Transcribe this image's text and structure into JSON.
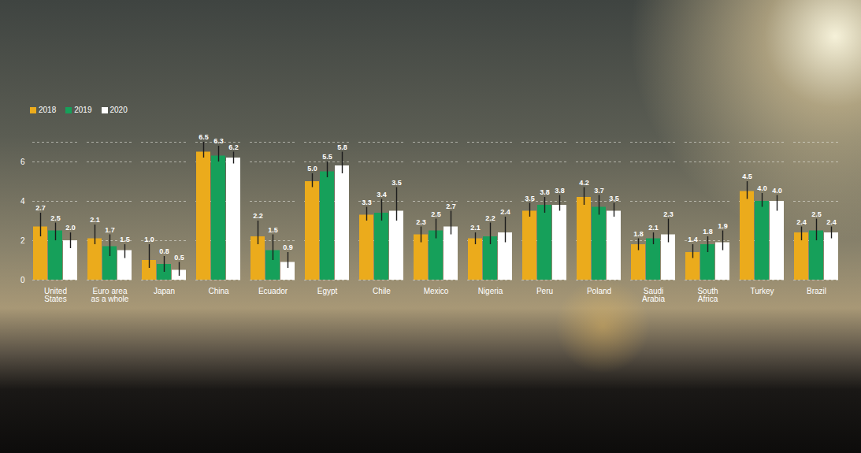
{
  "chart_data": {
    "type": "bar",
    "categories": [
      "United States",
      "Euro area as a whole",
      "Japan",
      "China",
      "Ecuador",
      "Egypt",
      "Chile",
      "Mexico",
      "Nigeria",
      "Peru",
      "Poland",
      "Saudi Arabia",
      "South Africa",
      "Turkey",
      "Brazil"
    ],
    "series": [
      {
        "name": "2018",
        "color": "#ebab1c",
        "values": [
          2.7,
          2.1,
          1.0,
          6.5,
          2.2,
          5.0,
          3.3,
          2.3,
          2.1,
          3.5,
          4.2,
          1.8,
          1.4,
          4.5,
          2.4
        ],
        "value_labels": [
          "2.7",
          "2.1",
          "1.0",
          "6.5",
          "2.2",
          "5.0",
          "3.3",
          "2.3",
          "2.1",
          "3.5",
          "4.2",
          "1.8",
          "1.4",
          "4.5",
          "2.4"
        ],
        "error_low": [
          2.2,
          1.8,
          0.6,
          6.2,
          1.8,
          4.7,
          3.0,
          1.9,
          1.8,
          3.2,
          3.8,
          1.5,
          1.1,
          4.1,
          2.0
        ],
        "error_high": [
          3.4,
          2.8,
          1.8,
          7.0,
          3.0,
          5.4,
          3.7,
          2.7,
          2.4,
          3.9,
          4.7,
          2.1,
          1.8,
          5.0,
          2.7
        ]
      },
      {
        "name": "2019",
        "color": "#16a05a",
        "values": [
          2.5,
          1.7,
          0.8,
          6.3,
          1.5,
          5.5,
          3.4,
          2.5,
          2.2,
          3.8,
          3.7,
          2.1,
          1.8,
          4.0,
          2.5
        ],
        "value_labels": [
          "2.5",
          "1.7",
          "0.8",
          "6.3",
          "1.5",
          "5.5",
          "3.4",
          "2.5",
          "2.2",
          "3.8",
          "3.7",
          "2.1",
          "1.8",
          "4.0",
          "2.5"
        ],
        "error_low": [
          2.0,
          1.2,
          0.4,
          6.0,
          1.0,
          5.2,
          3.0,
          2.1,
          1.8,
          3.4,
          3.3,
          1.8,
          1.4,
          3.7,
          2.0
        ],
        "error_high": [
          2.9,
          2.3,
          1.2,
          6.8,
          2.3,
          6.0,
          4.1,
          3.1,
          2.9,
          4.2,
          4.3,
          2.4,
          2.2,
          4.4,
          3.1
        ]
      },
      {
        "name": "2020",
        "color": "#ffffff",
        "values": [
          2.0,
          1.5,
          0.5,
          6.2,
          0.9,
          5.8,
          3.5,
          2.7,
          2.4,
          3.8,
          3.5,
          2.3,
          1.9,
          4.0,
          2.4
        ],
        "value_labels": [
          "2.0",
          "1.5",
          "0.5",
          "6.2",
          "0.9",
          "5.8",
          "3.5",
          "2.7",
          "2.4",
          "3.8",
          "3.5",
          "2.3",
          "1.9",
          "4.0",
          "2.4"
        ],
        "error_low": [
          1.6,
          1.1,
          0.2,
          5.9,
          0.6,
          5.4,
          3.0,
          2.3,
          1.9,
          3.5,
          3.2,
          1.9,
          1.5,
          3.5,
          2.1
        ],
        "error_high": [
          2.4,
          1.8,
          0.9,
          6.5,
          1.4,
          6.5,
          4.7,
          3.5,
          3.2,
          4.3,
          3.9,
          3.1,
          2.5,
          4.3,
          2.7
        ]
      }
    ],
    "ylim": [
      0,
      7
    ],
    "yticks": [
      0,
      2,
      4,
      6
    ],
    "grid": true,
    "legend": "top-left",
    "data_labels": true
  }
}
